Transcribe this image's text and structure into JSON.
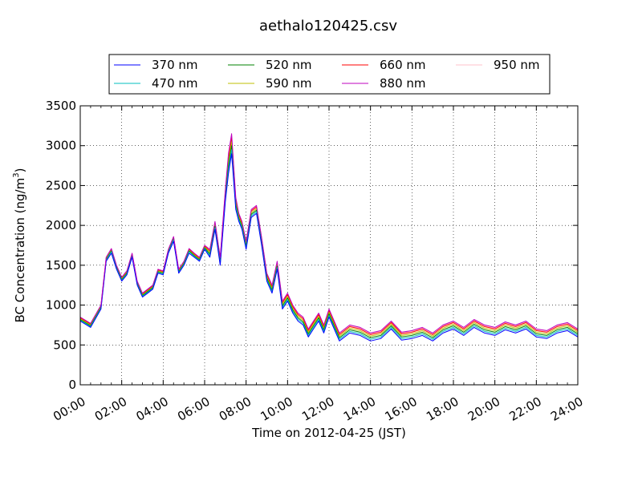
{
  "chart_data": {
    "type": "line",
    "title": "aethalo120425.csv",
    "xlabel": "Time on 2012-04-25 (JST)",
    "ylabel_main": "BC Concentration (ng/m",
    "ylabel_sup": "3",
    "ylabel_tail": ")",
    "xlim_hours": [
      0,
      24
    ],
    "ylim": [
      0,
      3500
    ],
    "grid": true,
    "legend_position": "top",
    "x_ticks": [
      {
        "hour": 0,
        "label": "00:00"
      },
      {
        "hour": 2,
        "label": "02:00"
      },
      {
        "hour": 4,
        "label": "04:00"
      },
      {
        "hour": 6,
        "label": "06:00"
      },
      {
        "hour": 8,
        "label": "08:00"
      },
      {
        "hour": 10,
        "label": "10:00"
      },
      {
        "hour": 12,
        "label": "12:00"
      },
      {
        "hour": 14,
        "label": "14:00"
      },
      {
        "hour": 16,
        "label": "16:00"
      },
      {
        "hour": 18,
        "label": "18:00"
      },
      {
        "hour": 20,
        "label": "20:00"
      },
      {
        "hour": 22,
        "label": "22:00"
      },
      {
        "hour": 24,
        "label": "24:00"
      }
    ],
    "y_ticks": [
      0,
      500,
      1000,
      1500,
      2000,
      2500,
      3000,
      3500
    ],
    "x_hours": [
      0,
      0.5,
      1,
      1.25,
      1.5,
      1.75,
      2,
      2.25,
      2.5,
      2.75,
      3,
      3.25,
      3.5,
      3.75,
      4,
      4.25,
      4.5,
      4.75,
      5,
      5.25,
      5.5,
      5.75,
      6,
      6.25,
      6.5,
      6.75,
      7,
      7.15,
      7.3,
      7.5,
      7.65,
      7.8,
      8,
      8.25,
      8.5,
      8.75,
      9,
      9.25,
      9.5,
      9.75,
      10,
      10.25,
      10.5,
      10.75,
      11,
      11.25,
      11.5,
      11.75,
      12,
      12.5,
      13,
      13.5,
      14,
      14.5,
      15,
      15.5,
      16,
      16.5,
      17,
      17.5,
      18,
      18.5,
      19,
      19.5,
      20,
      20.5,
      21,
      21.5,
      22,
      22.5,
      23,
      23.5,
      24
    ],
    "series": [
      {
        "name": "370 nm",
        "color": "#0000ff",
        "values": [
          800,
          720,
          950,
          1550,
          1650,
          1450,
          1300,
          1380,
          1600,
          1250,
          1100,
          1150,
          1200,
          1400,
          1380,
          1650,
          1800,
          1400,
          1500,
          1650,
          1600,
          1550,
          1700,
          1600,
          1950,
          1500,
          2300,
          2650,
          2900,
          2200,
          2050,
          1950,
          1700,
          2100,
          2150,
          1750,
          1300,
          1150,
          1450,
          950,
          1050,
          900,
          800,
          750,
          600,
          700,
          800,
          650,
          850,
          550,
          650,
          620,
          550,
          580,
          700,
          560,
          580,
          620,
          550,
          650,
          700,
          620,
          720,
          650,
          620,
          690,
          650,
          700,
          600,
          580,
          650,
          680,
          600
        ]
      },
      {
        "name": "470 nm",
        "color": "#00bfbf",
        "values": [
          810,
          730,
          960,
          1560,
          1670,
          1460,
          1310,
          1390,
          1610,
          1260,
          1110,
          1160,
          1210,
          1410,
          1390,
          1660,
          1820,
          1410,
          1510,
          1670,
          1610,
          1560,
          1710,
          1620,
          1970,
          1520,
          2330,
          2700,
          2950,
          2230,
          2070,
          1970,
          1720,
          2120,
          2170,
          1770,
          1320,
          1170,
          1470,
          970,
          1070,
          920,
          820,
          770,
          620,
          720,
          820,
          670,
          870,
          570,
          670,
          640,
          570,
          600,
          720,
          580,
          600,
          640,
          570,
          670,
          720,
          640,
          740,
          670,
          640,
          710,
          670,
          720,
          620,
          600,
          670,
          700,
          620
        ]
      },
      {
        "name": "520 nm",
        "color": "#008000",
        "values": [
          820,
          740,
          970,
          1570,
          1680,
          1470,
          1320,
          1400,
          1620,
          1270,
          1120,
          1170,
          1220,
          1420,
          1400,
          1670,
          1830,
          1420,
          1520,
          1680,
          1620,
          1570,
          1720,
          1640,
          1990,
          1540,
          2360,
          2750,
          3000,
          2260,
          2090,
          1990,
          1740,
          2140,
          2190,
          1790,
          1340,
          1190,
          1490,
          990,
          1090,
          940,
          840,
          790,
          640,
          740,
          840,
          690,
          890,
          590,
          690,
          660,
          590,
          620,
          740,
          600,
          620,
          660,
          590,
          690,
          740,
          660,
          760,
          690,
          660,
          730,
          690,
          740,
          640,
          620,
          690,
          720,
          640
        ]
      },
      {
        "name": "590 nm",
        "color": "#bfbf00",
        "values": [
          830,
          750,
          980,
          1580,
          1690,
          1480,
          1330,
          1410,
          1630,
          1280,
          1130,
          1180,
          1230,
          1430,
          1410,
          1680,
          1840,
          1430,
          1530,
          1690,
          1630,
          1580,
          1730,
          1660,
          2010,
          1560,
          2390,
          2800,
          3050,
          2290,
          2110,
          2010,
          1760,
          2160,
          2210,
          1810,
          1360,
          1210,
          1510,
          1010,
          1110,
          960,
          860,
          810,
          660,
          760,
          860,
          710,
          910,
          610,
          710,
          680,
          610,
          640,
          760,
          620,
          640,
          680,
          610,
          710,
          760,
          680,
          780,
          710,
          680,
          750,
          710,
          760,
          660,
          640,
          710,
          740,
          660
        ]
      },
      {
        "name": "660 nm",
        "color": "#ff0000",
        "values": [
          840,
          760,
          990,
          1590,
          1700,
          1490,
          1340,
          1420,
          1640,
          1290,
          1140,
          1190,
          1240,
          1440,
          1420,
          1690,
          1850,
          1440,
          1540,
          1700,
          1640,
          1590,
          1740,
          1680,
          2030,
          1580,
          2420,
          2850,
          3100,
          2320,
          2130,
          2030,
          1780,
          2180,
          2230,
          1830,
          1380,
          1230,
          1530,
          1030,
          1130,
          980,
          880,
          830,
          680,
          780,
          880,
          730,
          930,
          630,
          730,
          700,
          630,
          660,
          780,
          640,
          660,
          700,
          630,
          730,
          780,
          700,
          800,
          730,
          700,
          770,
          730,
          780,
          680,
          660,
          730,
          760,
          680
        ]
      },
      {
        "name": "880 nm",
        "color": "#bf00bf",
        "values": [
          850,
          770,
          1000,
          1600,
          1710,
          1500,
          1350,
          1430,
          1650,
          1300,
          1150,
          1200,
          1250,
          1450,
          1430,
          1700,
          1860,
          1450,
          1550,
          1710,
          1650,
          1600,
          1750,
          1700,
          2050,
          1600,
          2450,
          2900,
          3150,
          2350,
          2150,
          2050,
          1800,
          2200,
          2250,
          1850,
          1400,
          1250,
          1550,
          1050,
          1150,
          1000,
          900,
          850,
          700,
          800,
          900,
          750,
          950,
          650,
          750,
          720,
          650,
          680,
          800,
          660,
          680,
          720,
          650,
          750,
          800,
          720,
          820,
          750,
          720,
          790,
          750,
          800,
          700,
          680,
          750,
          780,
          700
        ]
      },
      {
        "name": "950 nm",
        "color": "#ffc0cb",
        "values": [
          845,
          765,
          995,
          1595,
          1705,
          1495,
          1345,
          1425,
          1645,
          1295,
          1145,
          1195,
          1245,
          1445,
          1425,
          1695,
          1855,
          1445,
          1545,
          1705,
          1645,
          1595,
          1745,
          1690,
          2040,
          1590,
          2440,
          2880,
          3130,
          2340,
          2140,
          2040,
          1790,
          2190,
          2240,
          1840,
          1390,
          1240,
          1540,
          1040,
          1140,
          990,
          890,
          840,
          690,
          790,
          890,
          740,
          940,
          640,
          740,
          710,
          640,
          670,
          790,
          650,
          670,
          710,
          640,
          740,
          790,
          710,
          810,
          740,
          710,
          780,
          740,
          790,
          690,
          670,
          740,
          770,
          690
        ]
      }
    ]
  }
}
